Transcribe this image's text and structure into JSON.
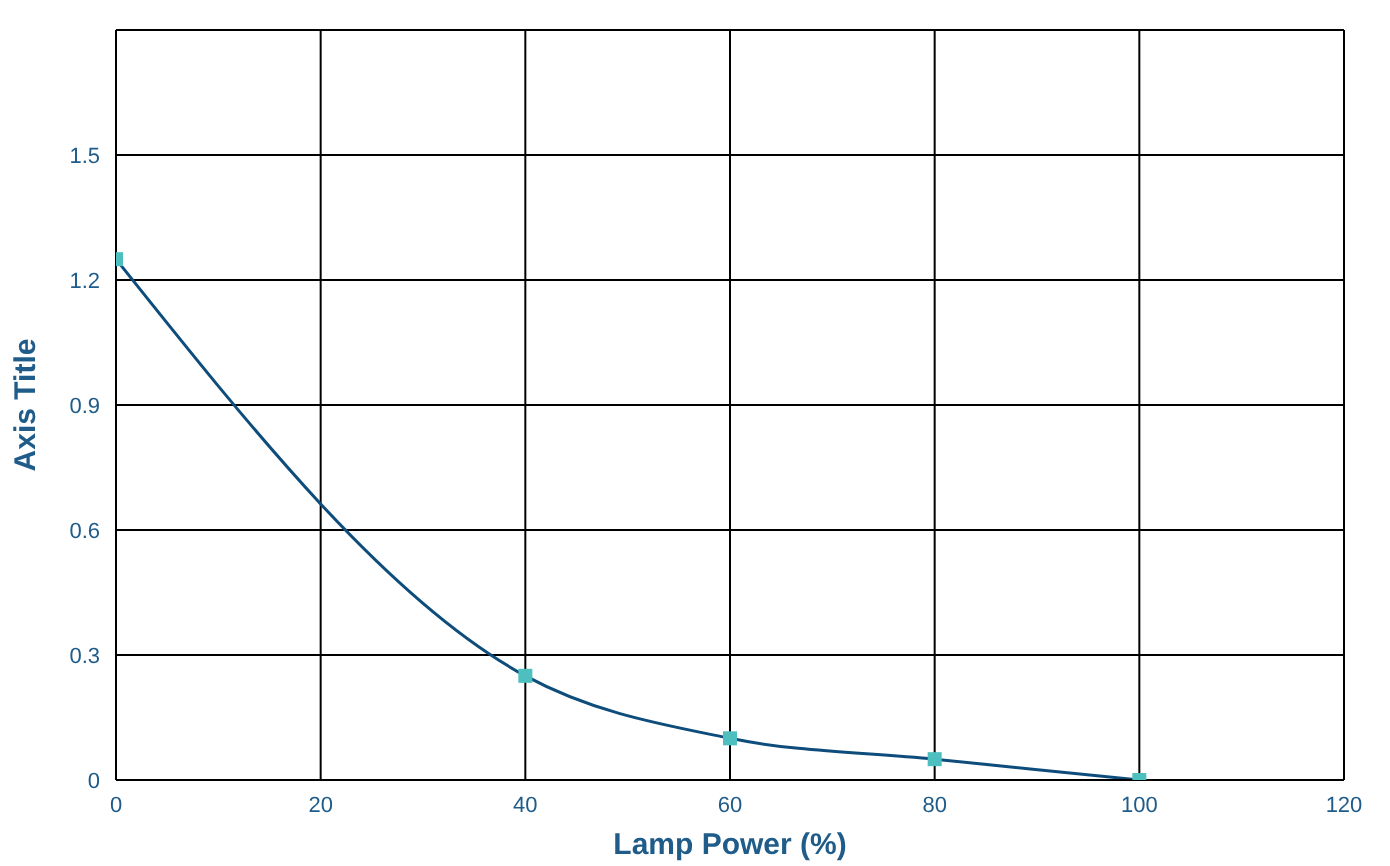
{
  "chart_data": {
    "type": "line",
    "xlabel": "Lamp Power (%)",
    "ylabel": "Axis Title",
    "x": [
      0,
      40,
      60,
      80,
      100
    ],
    "series": [
      {
        "color": "#0e4d7b",
        "colors": [
          "#4dbfbf",
          "#4dbfbf",
          "#4dbfbf",
          "#4dbfbf",
          "#4dbfbf"
        ],
        "values": [
          1.25,
          0.25,
          0.1,
          0.05,
          0
        ]
      }
    ],
    "xlim": [
      0,
      120
    ],
    "xticks": [
      0,
      20,
      40,
      60,
      80,
      100,
      120
    ],
    "ylim": [
      0,
      1.8
    ],
    "yticks": [
      0,
      0.3,
      0.6,
      0.9,
      1.2,
      1.5,
      {
        "value": 1.8,
        "label": null
      }
    ],
    "grid": true,
    "marker": "square",
    "line_style": "solid",
    "legend": false
  }
}
